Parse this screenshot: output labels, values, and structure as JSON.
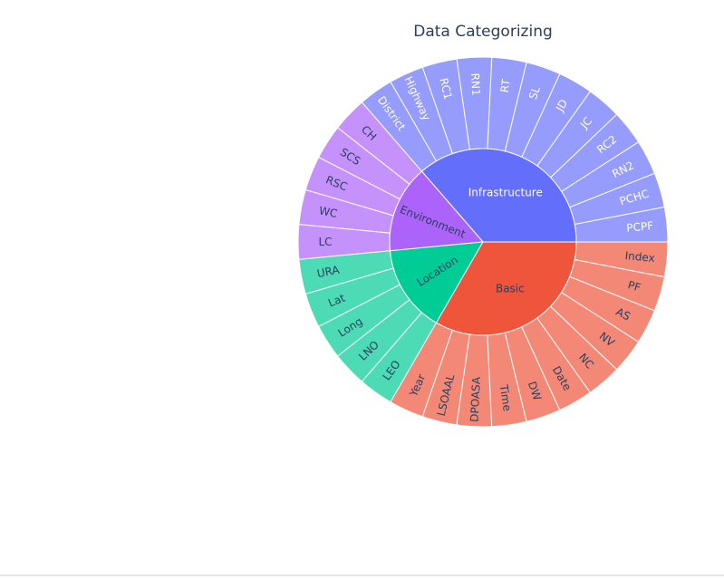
{
  "chart_data": {
    "type": "sunburst",
    "title": "Data Categorizing",
    "series": [
      {
        "name": "Infrastructure",
        "color": "#636efa",
        "child_color": "#959cfc",
        "label_color": "#ffffff",
        "children": [
          "PCPF",
          "PCHC",
          "RN2",
          "RC2",
          "JC",
          "JD",
          "SL",
          "RT",
          "RN1",
          "RC1",
          "Highway",
          "District"
        ]
      },
      {
        "name": "Environment",
        "color": "#ab63fa",
        "child_color": "#c592fc",
        "label_color": "#2a3f5f",
        "children": [
          "CH",
          "SCS",
          "RSC",
          "WC",
          "LC"
        ]
      },
      {
        "name": "Location",
        "color": "#00cc96",
        "child_color": "#4ddbb6",
        "label_color": "#2a3f5f",
        "children": [
          "URA",
          "Lat",
          "Long",
          "LNO",
          "LEO"
        ]
      },
      {
        "name": "Basic",
        "color": "#ef553b",
        "child_color": "#f38876",
        "label_color": "#2a3f5f",
        "children": [
          "Year",
          "LSOAAL",
          "DPOASA",
          "Time",
          "DW",
          "Date",
          "NC",
          "NV",
          "AS",
          "PF",
          "Index"
        ]
      }
    ]
  }
}
